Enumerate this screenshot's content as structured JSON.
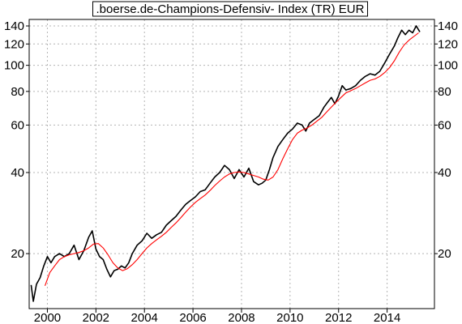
{
  "chart_data": {
    "type": "line",
    "title": ".boerse.de-Champions-Defensiv- Index (TR) EUR",
    "xlabel": "",
    "ylabel": "",
    "y_scale": "log",
    "xlim": [
      1999.25,
      2015.95
    ],
    "ylim": [
      12.5,
      148
    ],
    "x_ticks": [
      2000,
      2002,
      2004,
      2006,
      2008,
      2010,
      2012,
      2014
    ],
    "x_tick_labels": [
      "2000",
      "2002",
      "2004",
      "2006",
      "2008",
      "2010",
      "2012",
      "2014"
    ],
    "y_ticks": [
      20,
      40,
      60,
      80,
      100,
      120,
      140
    ],
    "y_tick_labels_left": [
      "20",
      "40",
      "60",
      "80",
      "100",
      "120",
      "140"
    ],
    "y_tick_labels_right": [
      "20",
      "40",
      "60",
      "80",
      "100",
      "120",
      "140"
    ],
    "grid": true,
    "colors": {
      "price": "#000000",
      "moving_average": "#ff0000",
      "grid": "#b4b4b4"
    },
    "series": [
      {
        "role": "index",
        "color": "#000000",
        "points": [
          [
            1999.33,
            15.3
          ],
          [
            1999.42,
            13.3
          ],
          [
            1999.55,
            15.4
          ],
          [
            1999.7,
            16.3
          ],
          [
            1999.85,
            18.0
          ],
          [
            2000.0,
            19.5
          ],
          [
            2000.15,
            18.5
          ],
          [
            2000.3,
            19.5
          ],
          [
            2000.5,
            20.0
          ],
          [
            2000.7,
            19.5
          ],
          [
            2000.9,
            20.0
          ],
          [
            2001.1,
            21.5
          ],
          [
            2001.3,
            19.0
          ],
          [
            2001.5,
            20.5
          ],
          [
            2001.7,
            23.0
          ],
          [
            2001.85,
            24.3
          ],
          [
            2002.0,
            20.8
          ],
          [
            2002.15,
            19.5
          ],
          [
            2002.3,
            19.0
          ],
          [
            2002.45,
            17.5
          ],
          [
            2002.6,
            16.4
          ],
          [
            2002.75,
            17.3
          ],
          [
            2002.9,
            17.5
          ],
          [
            2003.05,
            18.0
          ],
          [
            2003.2,
            17.7
          ],
          [
            2003.35,
            18.5
          ],
          [
            2003.5,
            20.0
          ],
          [
            2003.7,
            21.5
          ],
          [
            2003.9,
            22.3
          ],
          [
            2004.1,
            23.8
          ],
          [
            2004.3,
            22.8
          ],
          [
            2004.5,
            23.5
          ],
          [
            2004.7,
            24.0
          ],
          [
            2004.9,
            25.5
          ],
          [
            2005.1,
            26.5
          ],
          [
            2005.3,
            27.5
          ],
          [
            2005.5,
            29.0
          ],
          [
            2005.7,
            30.5
          ],
          [
            2005.9,
            31.5
          ],
          [
            2006.1,
            32.5
          ],
          [
            2006.3,
            34.0
          ],
          [
            2006.5,
            34.5
          ],
          [
            2006.7,
            36.5
          ],
          [
            2006.9,
            38.5
          ],
          [
            2007.1,
            40.0
          ],
          [
            2007.3,
            42.5
          ],
          [
            2007.5,
            41.0
          ],
          [
            2007.7,
            38.0
          ],
          [
            2007.9,
            41.0
          ],
          [
            2008.1,
            38.5
          ],
          [
            2008.3,
            41.5
          ],
          [
            2008.5,
            37.0
          ],
          [
            2008.7,
            36.0
          ],
          [
            2008.85,
            36.5
          ],
          [
            2009.0,
            37.5
          ],
          [
            2009.15,
            41.0
          ],
          [
            2009.3,
            45.5
          ],
          [
            2009.5,
            50.0
          ],
          [
            2009.7,
            53.0
          ],
          [
            2009.9,
            56.0
          ],
          [
            2010.1,
            58.0
          ],
          [
            2010.3,
            61.0
          ],
          [
            2010.5,
            60.0
          ],
          [
            2010.65,
            57.0
          ],
          [
            2010.8,
            61.0
          ],
          [
            2011.0,
            63.0
          ],
          [
            2011.2,
            65.0
          ],
          [
            2011.4,
            70.0
          ],
          [
            2011.55,
            73.0
          ],
          [
            2011.7,
            76.0
          ],
          [
            2011.85,
            72.0
          ],
          [
            2012.0,
            77.0
          ],
          [
            2012.15,
            84.0
          ],
          [
            2012.3,
            81.0
          ],
          [
            2012.5,
            82.0
          ],
          [
            2012.7,
            84.0
          ],
          [
            2012.9,
            88.0
          ],
          [
            2013.1,
            91.0
          ],
          [
            2013.3,
            93.0
          ],
          [
            2013.5,
            92.0
          ],
          [
            2013.7,
            95.0
          ],
          [
            2013.9,
            102.0
          ],
          [
            2014.1,
            110.0
          ],
          [
            2014.3,
            118.0
          ],
          [
            2014.45,
            127.0
          ],
          [
            2014.6,
            135.0
          ],
          [
            2014.75,
            130.0
          ],
          [
            2014.9,
            135.0
          ],
          [
            2015.05,
            132.0
          ],
          [
            2015.2,
            140.0
          ],
          [
            2015.35,
            133.0
          ]
        ]
      },
      {
        "role": "moving-average",
        "color": "#ff0000",
        "points": [
          [
            1999.9,
            15.2
          ],
          [
            2000.1,
            17.0
          ],
          [
            2000.3,
            18.0
          ],
          [
            2000.5,
            19.0
          ],
          [
            2000.7,
            19.5
          ],
          [
            2000.9,
            19.8
          ],
          [
            2001.1,
            20.0
          ],
          [
            2001.3,
            20.2
          ],
          [
            2001.5,
            20.5
          ],
          [
            2001.7,
            21.0
          ],
          [
            2001.9,
            21.7
          ],
          [
            2002.1,
            21.8
          ],
          [
            2002.3,
            21.0
          ],
          [
            2002.5,
            19.8
          ],
          [
            2002.7,
            18.5
          ],
          [
            2002.9,
            17.7
          ],
          [
            2003.1,
            17.3
          ],
          [
            2003.3,
            17.6
          ],
          [
            2003.5,
            18.2
          ],
          [
            2003.7,
            19.0
          ],
          [
            2003.9,
            20.0
          ],
          [
            2004.1,
            21.0
          ],
          [
            2004.3,
            21.8
          ],
          [
            2004.5,
            22.5
          ],
          [
            2004.7,
            23.2
          ],
          [
            2004.9,
            24.0
          ],
          [
            2005.1,
            25.0
          ],
          [
            2005.3,
            26.0
          ],
          [
            2005.5,
            27.2
          ],
          [
            2005.7,
            28.5
          ],
          [
            2005.9,
            29.8
          ],
          [
            2006.1,
            31.0
          ],
          [
            2006.3,
            32.0
          ],
          [
            2006.5,
            33.0
          ],
          [
            2006.7,
            34.3
          ],
          [
            2006.9,
            35.8
          ],
          [
            2007.1,
            37.2
          ],
          [
            2007.3,
            38.5
          ],
          [
            2007.5,
            39.5
          ],
          [
            2007.7,
            40.0
          ],
          [
            2007.9,
            40.2
          ],
          [
            2008.1,
            40.0
          ],
          [
            2008.3,
            39.5
          ],
          [
            2008.5,
            39.0
          ],
          [
            2008.7,
            38.5
          ],
          [
            2008.9,
            37.8
          ],
          [
            2009.1,
            37.5
          ],
          [
            2009.3,
            38.5
          ],
          [
            2009.5,
            41.0
          ],
          [
            2009.7,
            45.0
          ],
          [
            2009.9,
            49.0
          ],
          [
            2010.1,
            53.0
          ],
          [
            2010.3,
            56.0
          ],
          [
            2010.5,
            57.5
          ],
          [
            2010.7,
            58.5
          ],
          [
            2010.9,
            60.0
          ],
          [
            2011.1,
            62.0
          ],
          [
            2011.3,
            64.0
          ],
          [
            2011.5,
            67.0
          ],
          [
            2011.7,
            70.0
          ],
          [
            2011.9,
            73.0
          ],
          [
            2012.1,
            76.0
          ],
          [
            2012.3,
            79.0
          ],
          [
            2012.5,
            80.5
          ],
          [
            2012.7,
            82.0
          ],
          [
            2012.9,
            84.0
          ],
          [
            2013.1,
            86.0
          ],
          [
            2013.3,
            88.0
          ],
          [
            2013.5,
            89.0
          ],
          [
            2013.7,
            91.0
          ],
          [
            2013.9,
            94.0
          ],
          [
            2014.1,
            98.0
          ],
          [
            2014.3,
            104.0
          ],
          [
            2014.5,
            112.0
          ],
          [
            2014.7,
            119.0
          ],
          [
            2014.9,
            124.0
          ],
          [
            2015.1,
            128.0
          ],
          [
            2015.3,
            132.0
          ]
        ]
      }
    ]
  }
}
